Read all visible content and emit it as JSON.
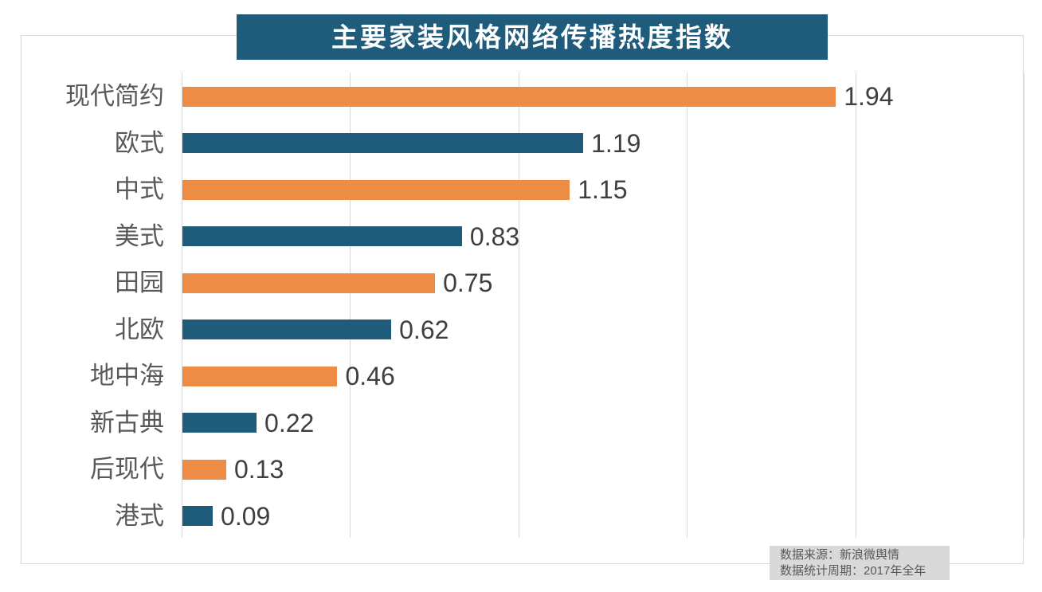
{
  "title": "主要家装风格网络传播热度指数",
  "source_box": {
    "line1": "数据来源：新浪微舆情",
    "line2": "数据统计周期：2017年全年"
  },
  "colors": {
    "title_bg": "#1f5c7b",
    "title_text": "#ffffff",
    "bar_orange": "#ed8c45",
    "bar_teal": "#1f5c7b",
    "gridline": "#d9d9d9",
    "frame_border": "#d9d9d9",
    "category_label": "#595959",
    "value_label": "#3f3f3f",
    "source_bg": "#d9d9d9",
    "source_text": "#595959"
  },
  "chart_data": {
    "type": "bar",
    "orientation": "horizontal",
    "title": "主要家装风格网络传播热度指数",
    "categories": [
      "现代简约",
      "欧式",
      "中式",
      "美式",
      "田园",
      "北欧",
      "地中海",
      "新古典",
      "后现代",
      "港式"
    ],
    "values": [
      1.94,
      1.19,
      1.15,
      0.83,
      0.75,
      0.62,
      0.46,
      0.22,
      0.13,
      0.09
    ],
    "value_labels": [
      "1.94",
      "1.19",
      "1.15",
      "0.83",
      "0.75",
      "0.62",
      "0.46",
      "0.22",
      "0.13",
      "0.09"
    ],
    "series_color_pattern": [
      "#ed8c45",
      "#1f5c7b"
    ],
    "xlabel": "",
    "ylabel": "",
    "xlim": [
      0,
      2.5
    ],
    "gridline_interval": 0.5,
    "grid": true,
    "axis_tick_labels_visible": false,
    "legend": false,
    "data_labels": true
  }
}
